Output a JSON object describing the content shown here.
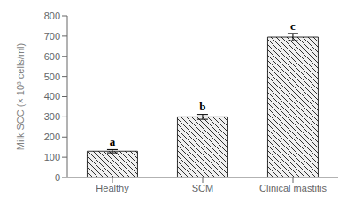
{
  "chart_data": {
    "type": "bar",
    "categories": [
      "Healthy",
      "SCM",
      "Clinical mastitis"
    ],
    "values": [
      130,
      300,
      695
    ],
    "errors": [
      8,
      12,
      18
    ],
    "letters": [
      "a",
      "b",
      "c"
    ],
    "ylabel": "Milk SCC (× 10³ cells/ml)",
    "ylim": [
      0,
      800
    ],
    "yticks": [
      0,
      100,
      200,
      300,
      400,
      500,
      600,
      700,
      800
    ],
    "color": "#f0f0f0",
    "grid": false
  }
}
